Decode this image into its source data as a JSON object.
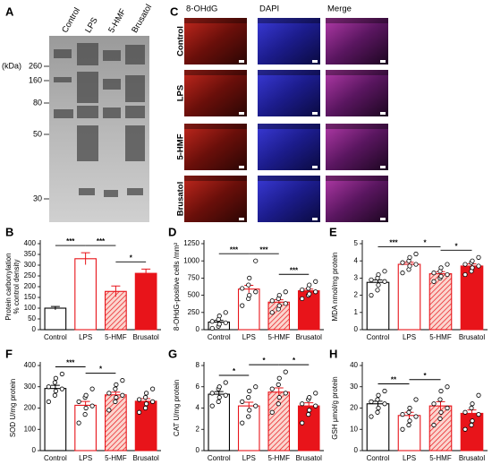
{
  "blot": {
    "panel": "A",
    "lanes": [
      "Control",
      "LPS",
      "5-HMF",
      "Brusatol"
    ],
    "unit": "(kDa)",
    "markers": [
      260,
      160,
      80,
      50,
      30
    ]
  },
  "micrographs": {
    "panel": "C",
    "columns": [
      "8-OHdG",
      "DAPI",
      "Merge"
    ],
    "rows": [
      "Control",
      "LPS",
      "5-HMF",
      "Brusatol"
    ]
  },
  "chart_data": [
    {
      "type": "bar",
      "panel": "B",
      "ylabel": [
        "Protein carbonylation",
        "% control density"
      ],
      "categories": [
        "Control",
        "LPS",
        "5-HMF",
        "Brusatol"
      ],
      "values": [
        100,
        330,
        178,
        262
      ],
      "errors": [
        8,
        28,
        25,
        20
      ],
      "colors": [
        "#ffffff",
        "#ffffff",
        "#f6b3a8",
        "#e8141a"
      ],
      "edge_colors": [
        "#000000",
        "#e8141a",
        "#e8141a",
        "#e8141a"
      ],
      "hatch": [
        false,
        false,
        true,
        false
      ],
      "ylim": [
        0,
        400
      ],
      "yticks": [
        0,
        50,
        100,
        150,
        200,
        250,
        300,
        350,
        400
      ],
      "significance": [
        {
          "text": "***",
          "from": 0,
          "to": 1
        },
        {
          "text": "***",
          "from": 1,
          "to": 2
        },
        {
          "text": "*",
          "from": 2,
          "to": 3
        }
      ]
    },
    {
      "type": "bar",
      "panel": "D",
      "ylabel": [
        "8-OHdG-positive cells /mm²"
      ],
      "categories": [
        "Control",
        "LPS",
        "5-HMF",
        "Brusatol"
      ],
      "values": [
        110,
        590,
        400,
        565
      ],
      "errors": [
        25,
        55,
        35,
        25
      ],
      "colors": [
        "#ffffff",
        "#ffffff",
        "#f6b3a8",
        "#e8141a"
      ],
      "edge_colors": [
        "#000000",
        "#e8141a",
        "#e8141a",
        "#e8141a"
      ],
      "hatch": [
        false,
        false,
        true,
        false
      ],
      "points": [
        [
          20,
          50,
          80,
          100,
          120,
          150,
          200,
          250
        ],
        [
          350,
          450,
          500,
          550,
          600,
          650,
          750,
          1000
        ],
        [
          250,
          300,
          350,
          380,
          420,
          450,
          500,
          550
        ],
        [
          450,
          500,
          520,
          550,
          580,
          600,
          650,
          700
        ]
      ],
      "ylim": [
        0,
        1250
      ],
      "yticks": [
        0,
        250,
        500,
        750,
        1000,
        1250
      ],
      "significance": [
        {
          "text": "***",
          "from": 0,
          "to": 1
        },
        {
          "text": "***",
          "from": 1,
          "to": 2
        },
        {
          "text": "***",
          "from": 2,
          "to": 3
        }
      ]
    },
    {
      "type": "bar",
      "panel": "E",
      "ylabel": [
        "MDA  nmol/mg protein"
      ],
      "categories": [
        "Control",
        "LPS",
        "5-HMF",
        "Brusatol"
      ],
      "values": [
        2.75,
        3.8,
        3.25,
        3.7
      ],
      "errors": [
        0.15,
        0.12,
        0.12,
        0.12
      ],
      "colors": [
        "#ffffff",
        "#ffffff",
        "#f6b3a8",
        "#e8141a"
      ],
      "edge_colors": [
        "#000000",
        "#e8141a",
        "#e8141a",
        "#e8141a"
      ],
      "hatch": [
        false,
        false,
        true,
        false
      ],
      "points": [
        [
          2.0,
          2.3,
          2.6,
          2.8,
          2.9,
          3.0,
          3.2,
          3.4
        ],
        [
          3.3,
          3.5,
          3.7,
          3.8,
          3.9,
          4.0,
          4.2,
          4.4
        ],
        [
          2.8,
          3.0,
          3.1,
          3.2,
          3.3,
          3.4,
          3.6,
          3.8
        ],
        [
          3.2,
          3.4,
          3.6,
          3.7,
          3.8,
          3.9,
          4.0,
          4.2
        ]
      ],
      "ylim": [
        0,
        5
      ],
      "yticks": [
        0,
        1,
        2,
        3,
        4,
        5
      ],
      "significance": [
        {
          "text": "***",
          "from": 0,
          "to": 1
        },
        {
          "text": "*",
          "from": 1,
          "to": 2
        },
        {
          "text": "*",
          "from": 2,
          "to": 3
        }
      ]
    },
    {
      "type": "bar",
      "panel": "F",
      "ylabel": [
        "SOD  U/mg protein"
      ],
      "categories": [
        "Control",
        "LPS",
        "5-HMF",
        "Brusatol"
      ],
      "values": [
        292,
        213,
        262,
        232
      ],
      "errors": [
        15,
        18,
        13,
        12
      ],
      "colors": [
        "#ffffff",
        "#ffffff",
        "#f6b3a8",
        "#e8141a"
      ],
      "edge_colors": [
        "#000000",
        "#e8141a",
        "#e8141a",
        "#e8141a"
      ],
      "hatch": [
        false,
        false,
        true,
        false
      ],
      "points": [
        [
          230,
          260,
          280,
          290,
          300,
          320,
          340,
          360
        ],
        [
          130,
          170,
          200,
          210,
          230,
          250,
          260,
          290
        ],
        [
          190,
          230,
          250,
          260,
          270,
          290,
          310,
          330
        ],
        [
          180,
          200,
          220,
          230,
          240,
          250,
          270,
          290
        ]
      ],
      "ylim": [
        0,
        400
      ],
      "yticks": [
        0,
        100,
        200,
        300,
        400
      ],
      "significance": [
        {
          "text": "***",
          "from": 0,
          "to": 1
        },
        {
          "text": "*",
          "from": 1,
          "to": 2
        }
      ]
    },
    {
      "type": "bar",
      "panel": "G",
      "ylabel": [
        "CAT  U/mg protein"
      ],
      "categories": [
        "Control",
        "LPS",
        "5-HMF",
        "Brusatol"
      ],
      "values": [
        5.3,
        4.2,
        5.5,
        4.2
      ],
      "errors": [
        0.25,
        0.35,
        0.4,
        0.3
      ],
      "colors": [
        "#ffffff",
        "#ffffff",
        "#f6b3a8",
        "#e8141a"
      ],
      "edge_colors": [
        "#000000",
        "#e8141a",
        "#e8141a",
        "#e8141a"
      ],
      "hatch": [
        false,
        false,
        true,
        false
      ],
      "points": [
        [
          4.2,
          4.6,
          5.0,
          5.2,
          5.4,
          5.8,
          6.0,
          6.4
        ],
        [
          2.6,
          3.2,
          3.8,
          4.2,
          4.6,
          5.0,
          5.6,
          6.0
        ],
        [
          3.6,
          4.4,
          5.0,
          5.4,
          5.8,
          6.2,
          6.8,
          7.4
        ],
        [
          2.6,
          3.4,
          3.8,
          4.2,
          4.4,
          4.8,
          5.0,
          5.4
        ]
      ],
      "ylim": [
        0,
        8
      ],
      "yticks": [
        0,
        2,
        4,
        6,
        8
      ],
      "significance": [
        {
          "text": "*",
          "from": 0,
          "to": 1
        },
        {
          "text": "*",
          "from": 1,
          "to": 2
        },
        {
          "text": "*",
          "from": 2,
          "to": 3
        }
      ]
    },
    {
      "type": "bar",
      "panel": "H",
      "ylabel": [
        "GSH  μmol/g protein"
      ],
      "categories": [
        "Control",
        "LPS",
        "5-HMF",
        "Brusatol"
      ],
      "values": [
        22,
        16.5,
        21,
        17.5
      ],
      "errors": [
        1.2,
        1.5,
        2,
        1.6
      ],
      "colors": [
        "#ffffff",
        "#ffffff",
        "#f6b3a8",
        "#e8141a"
      ],
      "edge_colors": [
        "#000000",
        "#e8141a",
        "#e8141a",
        "#e8141a"
      ],
      "hatch": [
        false,
        false,
        true,
        false
      ],
      "points": [
        [
          16,
          18,
          20,
          22,
          23,
          24,
          26,
          28
        ],
        [
          10,
          12,
          14,
          16,
          17,
          18,
          20,
          24
        ],
        [
          12,
          15,
          18,
          20,
          22,
          24,
          28,
          30
        ],
        [
          10,
          12,
          14,
          17,
          18,
          20,
          22,
          26
        ]
      ],
      "ylim": [
        0,
        40
      ],
      "yticks": [
        0,
        10,
        20,
        30,
        40
      ],
      "significance": [
        {
          "text": "**",
          "from": 0,
          "to": 1
        },
        {
          "text": "*",
          "from": 1,
          "to": 2
        }
      ]
    }
  ]
}
